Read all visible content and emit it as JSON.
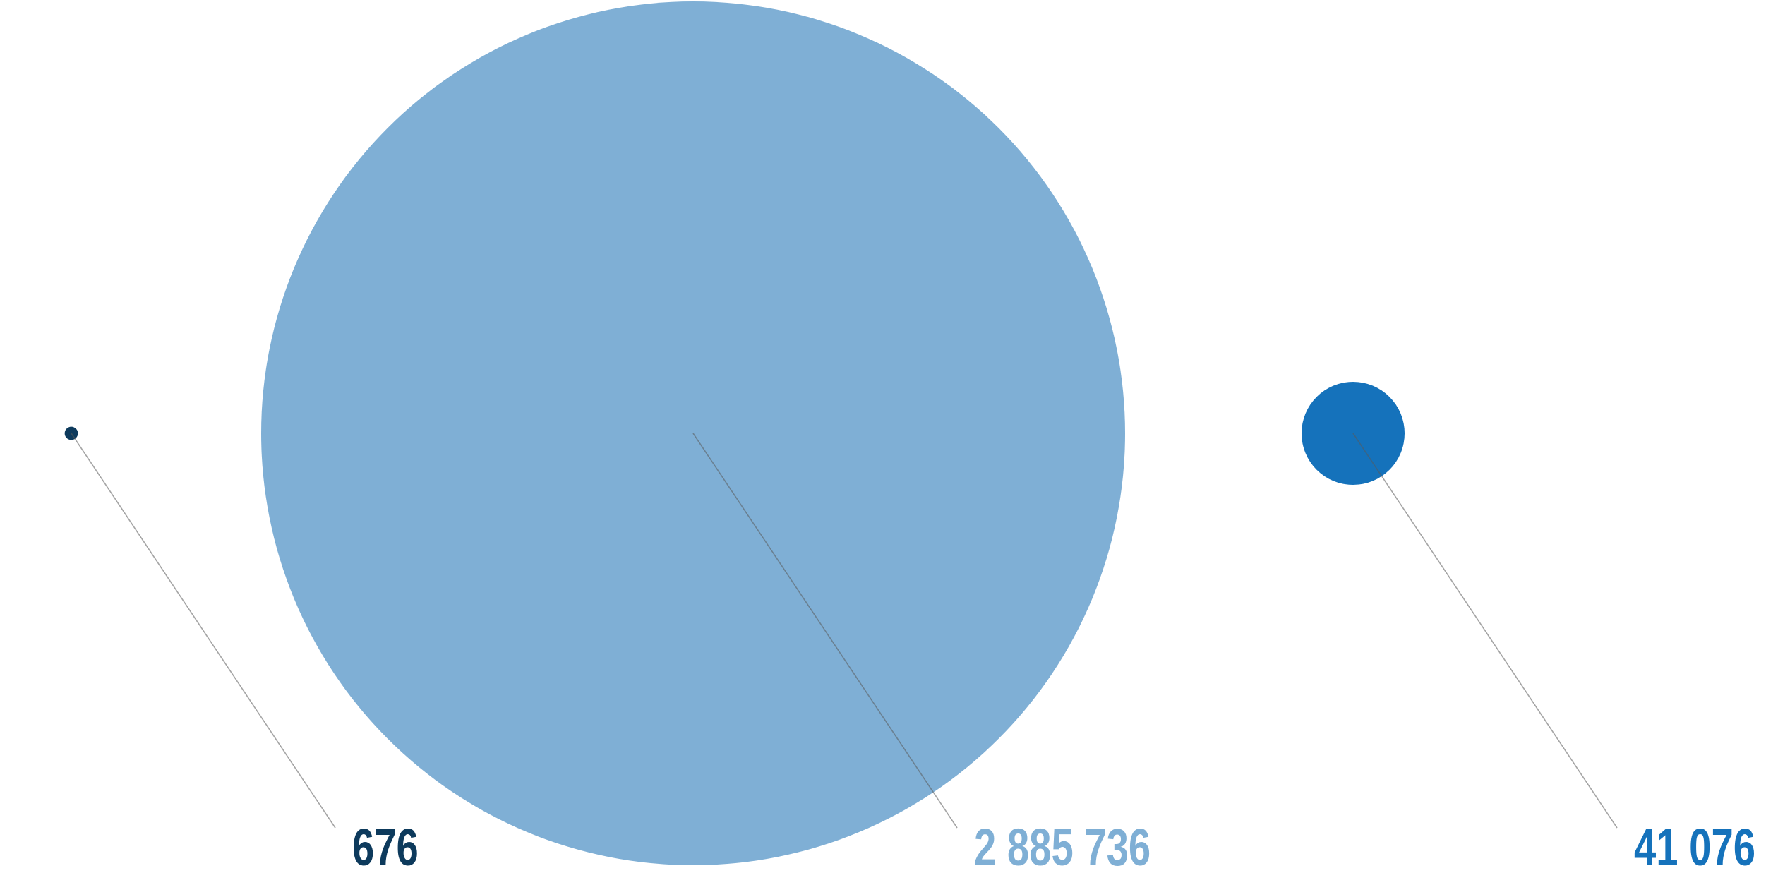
{
  "chart_data": {
    "type": "bubble",
    "values": [
      676,
      2885736,
      41076
    ],
    "value_labels": [
      "676",
      "2 885 736",
      "41 076"
    ],
    "colors": [
      "#0d3a5c",
      "#7fafd5",
      "#1572bb"
    ]
  }
}
